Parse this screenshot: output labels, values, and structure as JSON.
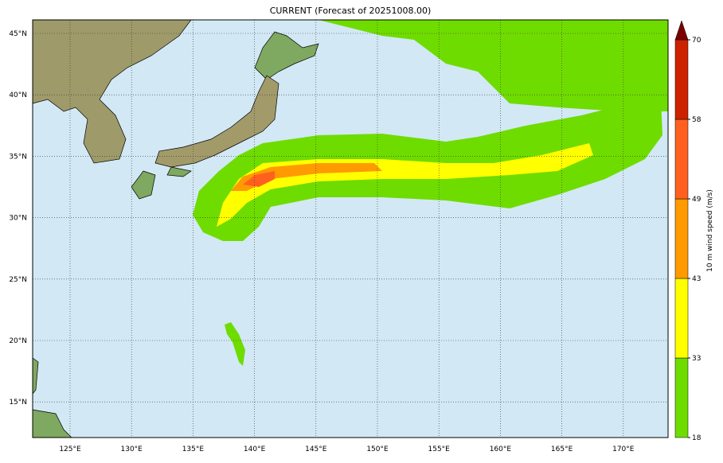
{
  "title": "CURRENT (Forecast of 20251008.00)",
  "map": {
    "lon_labels": [
      "125°E",
      "130°E",
      "135°E",
      "140°E",
      "145°E",
      "150°E",
      "155°E",
      "160°E",
      "165°E",
      "170°E"
    ],
    "lat_labels": [
      "45°N",
      "40°N",
      "35°N",
      "30°N",
      "25°N",
      "20°N",
      "15°N"
    ]
  },
  "colorbar": {
    "label": "10 m wind speed (m/s)",
    "ticks": [
      18,
      33,
      43,
      49,
      58,
      70
    ],
    "colors": [
      "#6fdc00",
      "#ffff00",
      "#ff9a00",
      "#ff6020",
      "#cc2200"
    ],
    "extend_color": "#7a0000"
  }
}
